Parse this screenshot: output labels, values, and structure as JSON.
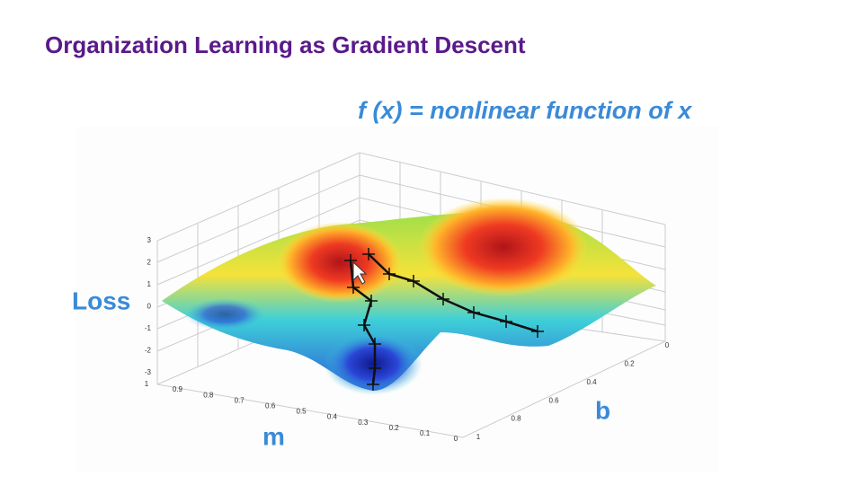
{
  "header": {
    "title": "Organization Learning as Gradient Descent"
  },
  "figure": {
    "caption": "f (x) = nonlinear function of x",
    "z_label": "Loss",
    "x_label": "m",
    "y_label": "b",
    "z_ticks": [
      "3",
      "2",
      "1",
      "0",
      "-1",
      "-2",
      "-3"
    ],
    "m_ticks": [
      "1",
      "0.9",
      "0.8",
      "0.7",
      "0.6",
      "0.5",
      "0.4",
      "0.3",
      "0.2",
      "0.1",
      "0"
    ],
    "b_ticks": [
      "0",
      "0.2",
      "0.4",
      "0.6",
      "0.8",
      "1"
    ]
  }
}
